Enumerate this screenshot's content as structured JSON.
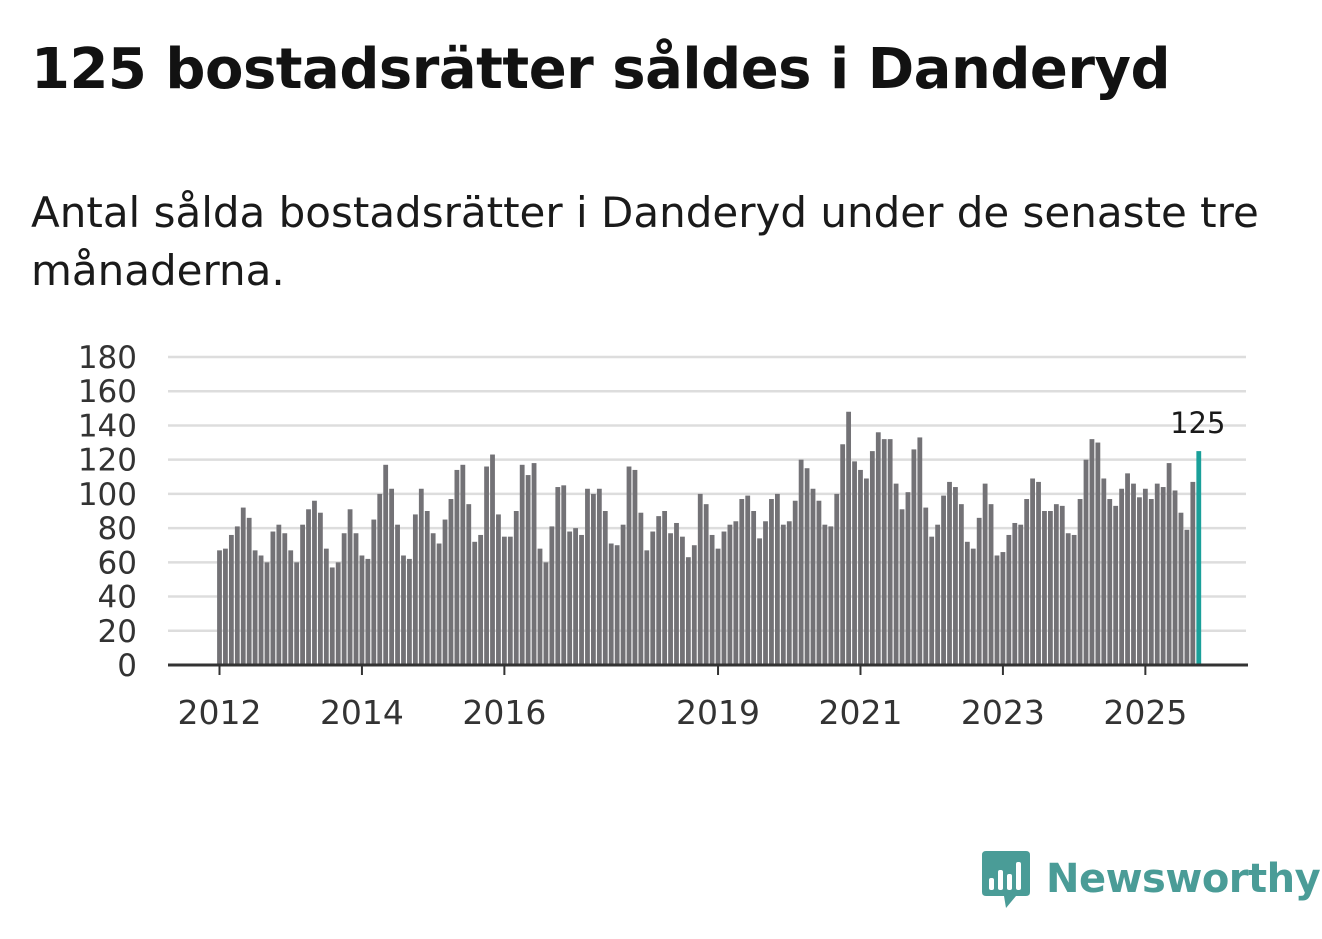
{
  "title": "125 bostadsrätter såldes i Danderyd",
  "subtitle": "Antal sålda bostadsrätter i Danderyd under de senaste tre månaderna.",
  "brand": "Newsworthy",
  "colors": {
    "bar": "#737276",
    "highlight": "#1aa09a",
    "grid": "#dddddd",
    "axis": "#333333",
    "brand": "#4a9c97"
  },
  "chart_data": {
    "type": "bar",
    "title": "125 bostadsrätter såldes i Danderyd",
    "xlabel": "",
    "ylabel": "",
    "ylim": [
      0,
      180
    ],
    "yticks": [
      0,
      20,
      40,
      60,
      80,
      100,
      120,
      140,
      160,
      180
    ],
    "grid": true,
    "first_period": "2012-01",
    "xtick_labels": [
      "2012",
      "2014",
      "2016",
      "2019",
      "2021",
      "2023",
      "2025"
    ],
    "highlight_label": "125",
    "values": [
      67,
      68,
      76,
      81,
      92,
      86,
      67,
      64,
      60,
      78,
      82,
      77,
      67,
      60,
      82,
      91,
      96,
      89,
      68,
      57,
      60,
      77,
      91,
      77,
      64,
      62,
      85,
      100,
      117,
      103,
      82,
      64,
      62,
      88,
      103,
      90,
      77,
      71,
      85,
      97,
      114,
      117,
      94,
      72,
      76,
      116,
      123,
      88,
      75,
      75,
      90,
      117,
      111,
      118,
      68,
      60,
      81,
      104,
      105,
      78,
      80,
      76,
      103,
      100,
      103,
      90,
      71,
      70,
      82,
      116,
      114,
      89,
      67,
      78,
      87,
      90,
      77,
      83,
      75,
      63,
      70,
      100,
      94,
      76,
      68,
      78,
      82,
      84,
      97,
      99,
      90,
      74,
      84,
      97,
      100,
      82,
      84,
      96,
      120,
      115,
      103,
      96,
      82,
      81,
      100,
      129,
      148,
      119,
      114,
      109,
      125,
      136,
      132,
      132,
      106,
      91,
      101,
      126,
      133,
      92,
      75,
      82,
      99,
      107,
      104,
      94,
      72,
      68,
      86,
      106,
      94,
      64,
      66,
      76,
      83,
      82,
      97,
      109,
      107,
      90,
      90,
      94,
      93,
      77,
      76,
      97,
      120,
      132,
      130,
      109,
      97,
      93,
      103,
      112,
      106,
      98,
      103,
      97,
      106,
      104,
      118,
      102,
      89,
      79,
      107,
      125
    ]
  }
}
